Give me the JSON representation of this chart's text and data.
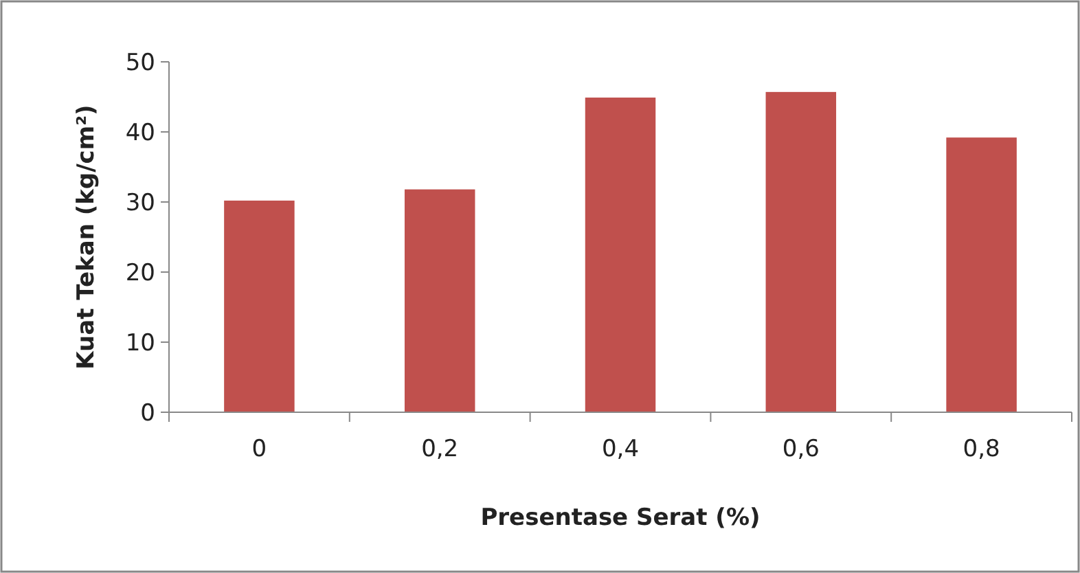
{
  "chart_data": {
    "type": "bar",
    "xlabel": "Presentase Serat (%)",
    "ylabel": "Kuat Tekan (kg/cm²)",
    "categories": [
      "0",
      "0,2",
      "0,4",
      "0,6",
      "0,8"
    ],
    "values": [
      30.2,
      31.8,
      44.9,
      45.7,
      39.2
    ],
    "color": "#c0504d",
    "ylim": [
      0,
      50
    ],
    "yticks": [
      0,
      10,
      20,
      30,
      40,
      50
    ],
    "grid": false
  }
}
